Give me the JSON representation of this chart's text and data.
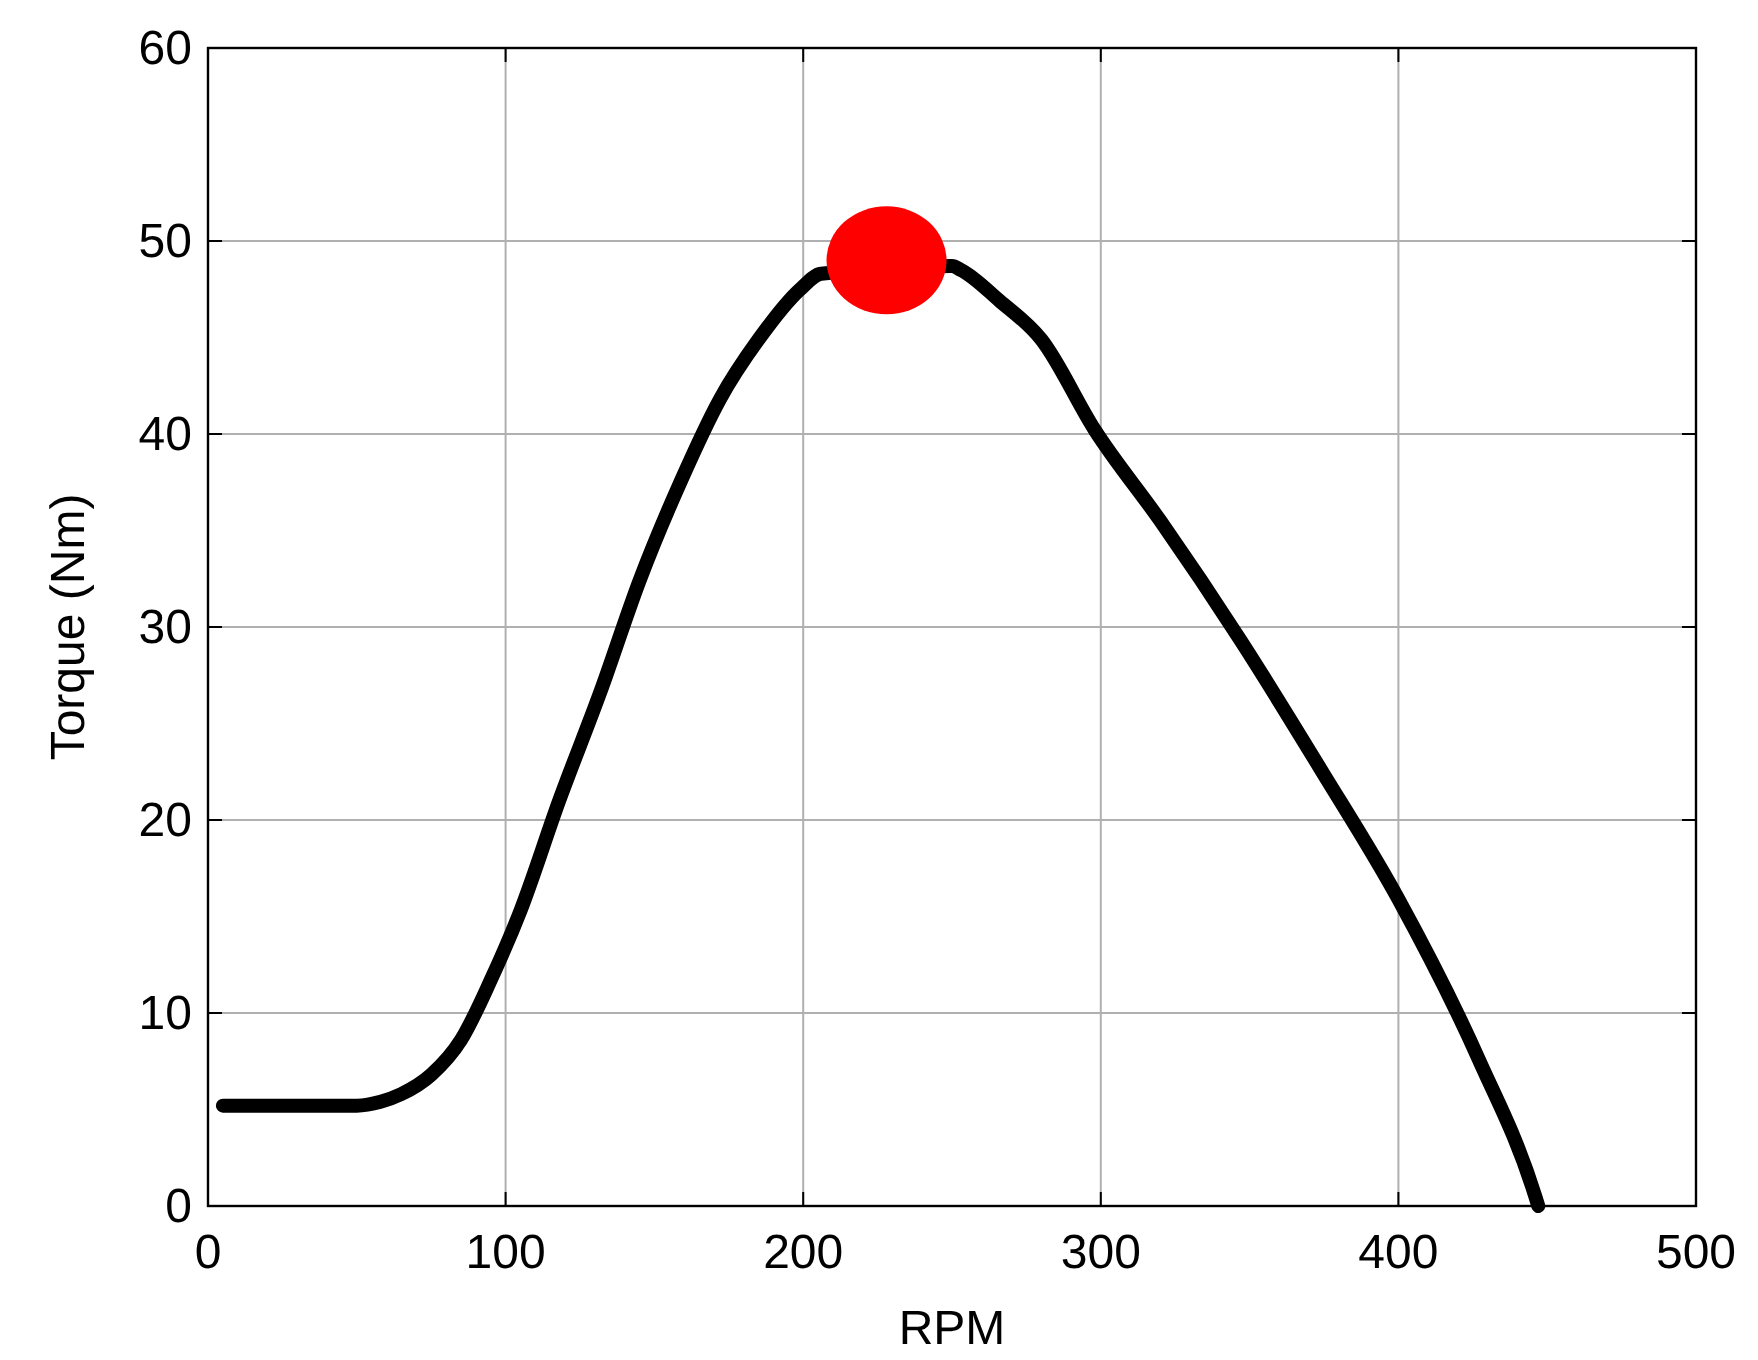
{
  "chart_data": {
    "type": "line",
    "xlabel": "RPM",
    "ylabel": "Torque (Nm)",
    "xlim": [
      0,
      500
    ],
    "ylim": [
      0,
      60
    ],
    "xticks": [
      0,
      100,
      200,
      300,
      400,
      500
    ],
    "yticks": [
      0,
      10,
      20,
      30,
      40,
      50,
      60
    ],
    "grid": true,
    "marker": "none",
    "series": [
      {
        "color": "#000000",
        "x": [
          5,
          20,
          35,
          50,
          58,
          65,
          75,
          85,
          95,
          105,
          118,
          132,
          145,
          159,
          172,
          185,
          199,
          206,
          250,
          253,
          266,
          280,
          298,
          320,
          347,
          374,
          400,
          427,
          446,
          447
        ],
        "values": [
          5.2,
          5.2,
          5.2,
          5.2,
          5.4,
          5.8,
          6.8,
          8.6,
          11.7,
          15.3,
          21,
          26.7,
          32.4,
          37.6,
          41.8,
          44.9,
          47.5,
          48.3,
          48.7,
          48.5,
          46.9,
          44.9,
          40.2,
          35.5,
          29.3,
          22.6,
          15.9,
          7.6,
          0.5,
          0
        ]
      },
      {
        "type": "scatter",
        "color": "#ff0000",
        "marker": "circle",
        "x": [
          228
        ],
        "values": [
          49
        ]
      }
    ]
  }
}
